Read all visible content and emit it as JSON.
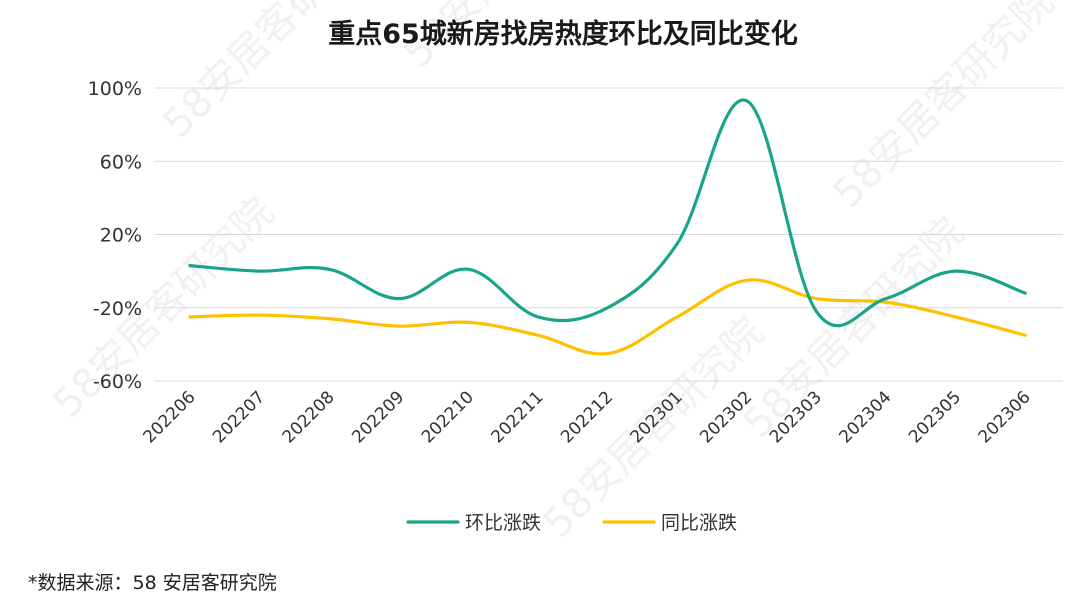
{
  "chart_data": {
    "type": "line",
    "title": "重点65城新房找房热度环比及同比变化",
    "categories": [
      "202206",
      "202207",
      "202208",
      "202209",
      "202210",
      "202211",
      "202212",
      "202301",
      "202302",
      "202303",
      "202304",
      "202305",
      "202306"
    ],
    "series": [
      {
        "name": "环比涨跌",
        "color": "#1aa58a",
        "values": [
          3,
          0,
          1,
          -15,
          1,
          -25,
          -20,
          15,
          93,
          -22,
          -15,
          0,
          -12
        ]
      },
      {
        "name": "同比涨跌",
        "color": "#ffc000",
        "values": [
          -25,
          -24,
          -26,
          -30,
          -28,
          -35,
          -45,
          -25,
          -5,
          -15,
          -17,
          -25,
          -35
        ]
      }
    ],
    "ylim": [
      -60,
      100
    ],
    "yticks": [
      100,
      60,
      20,
      -20,
      -60
    ],
    "ytick_labels": [
      "100%",
      "60%",
      "20%",
      "-20%",
      "-60%"
    ],
    "grid": true,
    "legend_position": "bottom-center",
    "source_note": "*数据来源：58 安居客研究院",
    "watermark": "58安居客研究院"
  }
}
